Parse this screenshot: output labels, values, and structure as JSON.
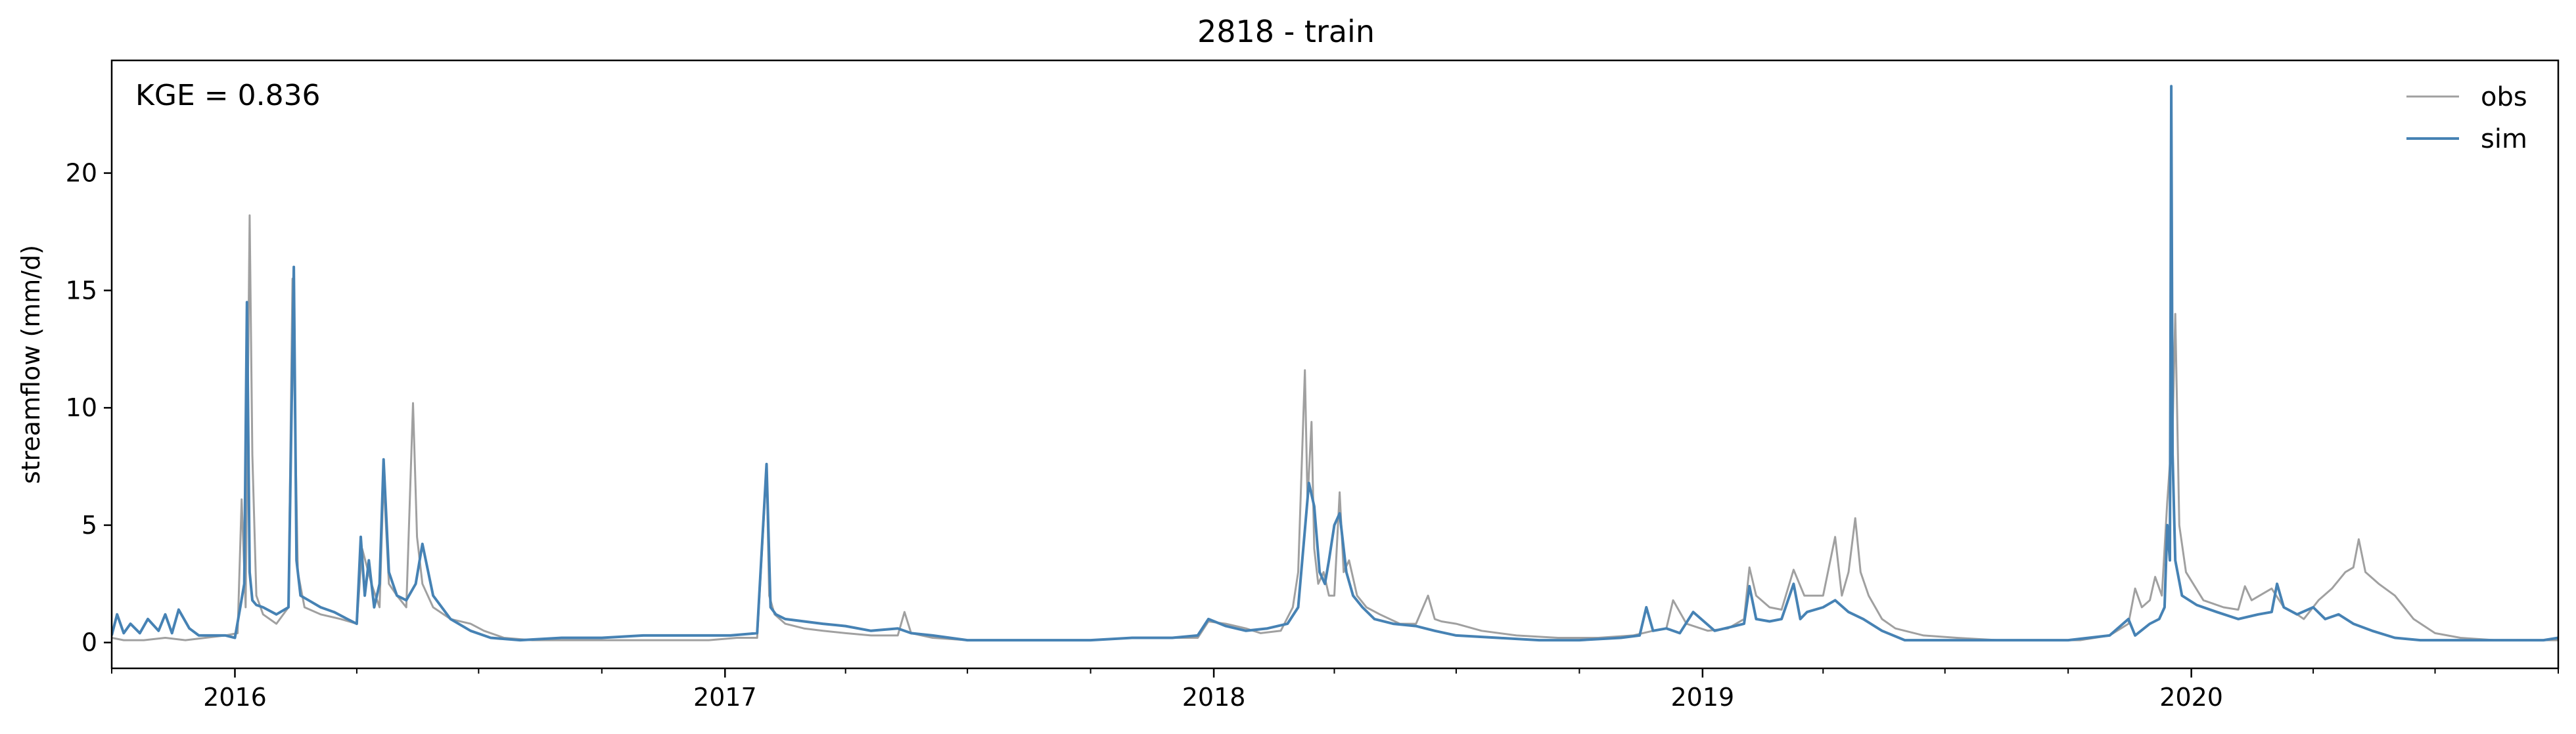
{
  "chart_data": {
    "type": "line",
    "title": "2818 - train",
    "xlabel": "",
    "ylabel": "streamflow (mm/d)",
    "xlim": [
      "2015-10-01",
      "2020-10-01"
    ],
    "ylim": [
      -1.1,
      24.8
    ],
    "yticks": [
      0,
      5,
      10,
      15,
      20
    ],
    "xticks": [
      {
        "date": "2016-01-01",
        "label": "2016"
      },
      {
        "date": "2017-01-01",
        "label": "2017"
      },
      {
        "date": "2018-01-01",
        "label": "2018"
      },
      {
        "date": "2019-01-01",
        "label": "2019"
      },
      {
        "date": "2020-01-01",
        "label": "2020"
      }
    ],
    "grid": false,
    "legend": "top-right",
    "annotation": "KGE = 0.836",
    "series": [
      {
        "name": "obs",
        "color": "#a0a0a0",
        "x": [
          "2015-10-01",
          "2015-10-10",
          "2015-10-25",
          "2015-11-10",
          "2015-11-25",
          "2015-12-10",
          "2015-12-25",
          "2016-01-03",
          "2016-01-06",
          "2016-01-09",
          "2016-01-12",
          "2016-01-14",
          "2016-01-17",
          "2016-01-22",
          "2016-02-01",
          "2016-02-10",
          "2016-02-13",
          "2016-02-17",
          "2016-02-22",
          "2016-03-05",
          "2016-03-20",
          "2016-04-01",
          "2016-04-05",
          "2016-04-12",
          "2016-04-18",
          "2016-04-21",
          "2016-04-25",
          "2016-05-01",
          "2016-05-08",
          "2016-05-13",
          "2016-05-16",
          "2016-05-20",
          "2016-05-28",
          "2016-06-10",
          "2016-06-25",
          "2016-07-05",
          "2016-07-20",
          "2016-08-10",
          "2016-09-15",
          "2016-10-20",
          "2016-11-20",
          "2016-12-20",
          "2017-01-10",
          "2017-01-25",
          "2017-02-01",
          "2017-02-03",
          "2017-02-07",
          "2017-02-15",
          "2017-03-01",
          "2017-03-15",
          "2017-04-01",
          "2017-04-20",
          "2017-05-10",
          "2017-05-15",
          "2017-05-20",
          "2017-06-05",
          "2017-07-01",
          "2017-08-01",
          "2017-09-01",
          "2017-10-01",
          "2017-11-01",
          "2017-12-01",
          "2017-12-20",
          "2017-12-28",
          "2018-01-10",
          "2018-01-25",
          "2018-02-05",
          "2018-02-20",
          "2018-03-01",
          "2018-03-05",
          "2018-03-10",
          "2018-03-12",
          "2018-03-15",
          "2018-03-17",
          "2018-03-20",
          "2018-03-24",
          "2018-03-28",
          "2018-04-01",
          "2018-04-05",
          "2018-04-08",
          "2018-04-12",
          "2018-04-18",
          "2018-04-25",
          "2018-05-05",
          "2018-05-20",
          "2018-06-01",
          "2018-06-10",
          "2018-06-15",
          "2018-06-20",
          "2018-07-01",
          "2018-07-20",
          "2018-08-15",
          "2018-09-15",
          "2018-10-15",
          "2018-11-10",
          "2018-11-25",
          "2018-12-05",
          "2018-12-10",
          "2018-12-20",
          "2019-01-05",
          "2019-01-20",
          "2019-02-01",
          "2019-02-05",
          "2019-02-10",
          "2019-02-20",
          "2019-03-01",
          "2019-03-10",
          "2019-03-18",
          "2019-04-01",
          "2019-04-10",
          "2019-04-15",
          "2019-04-20",
          "2019-04-25",
          "2019-04-29",
          "2019-05-05",
          "2019-05-15",
          "2019-05-25",
          "2019-06-15",
          "2019-07-10",
          "2019-08-10",
          "2019-09-10",
          "2019-10-10",
          "2019-11-01",
          "2019-11-15",
          "2019-11-20",
          "2019-11-25",
          "2019-12-01",
          "2019-12-05",
          "2019-12-10",
          "2019-12-14",
          "2019-12-16",
          "2019-12-18",
          "2019-12-20",
          "2019-12-23",
          "2019-12-28",
          "2020-01-10",
          "2020-01-25",
          "2020-02-05",
          "2020-02-10",
          "2020-02-15",
          "2020-03-01",
          "2020-03-10",
          "2020-03-20",
          "2020-03-25",
          "2020-04-05",
          "2020-04-15",
          "2020-04-25",
          "2020-05-01",
          "2020-05-05",
          "2020-05-10",
          "2020-05-20",
          "2020-06-01",
          "2020-06-15",
          "2020-07-01",
          "2020-07-20",
          "2020-08-15",
          "2020-09-15",
          "2020-10-01"
        ],
        "y": [
          0.2,
          0.1,
          0.1,
          0.2,
          0.1,
          0.2,
          0.3,
          0.4,
          6.1,
          1.5,
          18.2,
          8.0,
          2.0,
          1.2,
          0.8,
          1.5,
          15.5,
          3.0,
          1.5,
          1.2,
          1.0,
          0.8,
          4.0,
          2.5,
          1.5,
          7.0,
          2.5,
          2.0,
          1.5,
          10.2,
          4.5,
          2.5,
          1.5,
          1.0,
          0.8,
          0.5,
          0.2,
          0.1,
          0.1,
          0.1,
          0.1,
          0.1,
          0.2,
          0.2,
          7.4,
          2.0,
          1.2,
          0.8,
          0.6,
          0.5,
          0.4,
          0.3,
          0.3,
          1.3,
          0.4,
          0.2,
          0.1,
          0.1,
          0.1,
          0.1,
          0.2,
          0.2,
          0.2,
          0.9,
          0.8,
          0.6,
          0.4,
          0.5,
          1.5,
          3.0,
          11.6,
          6.0,
          9.4,
          4.0,
          2.5,
          3.0,
          2.0,
          2.0,
          6.4,
          3.0,
          3.5,
          2.0,
          1.5,
          1.2,
          0.8,
          0.8,
          2.0,
          1.0,
          0.9,
          0.8,
          0.5,
          0.3,
          0.2,
          0.2,
          0.3,
          0.5,
          0.6,
          1.8,
          0.8,
          0.5,
          0.6,
          1.0,
          3.2,
          2.0,
          1.5,
          1.4,
          3.1,
          2.0,
          2.0,
          4.5,
          2.0,
          3.0,
          5.3,
          3.0,
          2.0,
          1.0,
          0.6,
          0.3,
          0.2,
          0.1,
          0.1,
          0.1,
          0.3,
          0.8,
          2.3,
          1.5,
          1.8,
          2.8,
          2.0,
          6.0,
          7.6,
          9.0,
          14.0,
          5.0,
          3.0,
          1.8,
          1.5,
          1.4,
          2.4,
          1.8,
          2.3,
          1.5,
          1.2,
          1.0,
          1.8,
          2.3,
          3.0,
          3.2,
          4.4,
          3.0,
          2.5,
          2.0,
          1.0,
          0.4,
          0.2,
          0.1,
          0.1,
          0.1
        ]
      },
      {
        "name": "sim",
        "color": "#4682b4",
        "x": [
          "2015-10-01",
          "2015-10-05",
          "2015-10-10",
          "2015-10-15",
          "2015-10-22",
          "2015-10-28",
          "2015-11-05",
          "2015-11-10",
          "2015-11-15",
          "2015-11-20",
          "2015-11-28",
          "2015-12-05",
          "2015-12-15",
          "2015-12-25",
          "2016-01-01",
          "2016-01-05",
          "2016-01-08",
          "2016-01-10",
          "2016-01-12",
          "2016-01-14",
          "2016-01-17",
          "2016-01-22",
          "2016-02-01",
          "2016-02-10",
          "2016-02-14",
          "2016-02-16",
          "2016-02-19",
          "2016-02-25",
          "2016-03-05",
          "2016-03-15",
          "2016-03-25",
          "2016-04-01",
          "2016-04-04",
          "2016-04-07",
          "2016-04-10",
          "2016-04-14",
          "2016-04-18",
          "2016-04-21",
          "2016-04-25",
          "2016-05-01",
          "2016-05-08",
          "2016-05-15",
          "2016-05-20",
          "2016-05-28",
          "2016-06-10",
          "2016-06-25",
          "2016-07-10",
          "2016-08-01",
          "2016-09-01",
          "2016-10-01",
          "2016-11-01",
          "2016-12-01",
          "2017-01-05",
          "2017-01-25",
          "2017-02-01",
          "2017-02-04",
          "2017-02-08",
          "2017-02-15",
          "2017-03-01",
          "2017-03-15",
          "2017-04-01",
          "2017-04-20",
          "2017-05-10",
          "2017-05-20",
          "2017-06-05",
          "2017-07-01",
          "2017-08-01",
          "2017-09-01",
          "2017-10-01",
          "2017-11-01",
          "2017-12-01",
          "2017-12-20",
          "2017-12-28",
          "2018-01-10",
          "2018-01-25",
          "2018-02-10",
          "2018-02-25",
          "2018-03-05",
          "2018-03-10",
          "2018-03-13",
          "2018-03-17",
          "2018-03-21",
          "2018-03-25",
          "2018-03-28",
          "2018-04-01",
          "2018-04-05",
          "2018-04-10",
          "2018-04-15",
          "2018-04-22",
          "2018-05-01",
          "2018-05-15",
          "2018-06-01",
          "2018-06-15",
          "2018-07-01",
          "2018-08-01",
          "2018-09-01",
          "2018-10-01",
          "2018-11-01",
          "2018-11-15",
          "2018-11-20",
          "2018-11-25",
          "2018-12-05",
          "2018-12-15",
          "2018-12-25",
          "2019-01-10",
          "2019-01-25",
          "2019-02-01",
          "2019-02-05",
          "2019-02-10",
          "2019-02-20",
          "2019-03-01",
          "2019-03-10",
          "2019-03-15",
          "2019-03-20",
          "2019-04-01",
          "2019-04-10",
          "2019-04-20",
          "2019-05-01",
          "2019-05-15",
          "2019-06-01",
          "2019-06-15",
          "2019-07-01",
          "2019-08-01",
          "2019-09-01",
          "2019-10-01",
          "2019-11-01",
          "2019-11-15",
          "2019-11-20",
          "2019-12-01",
          "2019-12-08",
          "2019-12-12",
          "2019-12-14",
          "2019-12-16",
          "2019-12-17",
          "2019-12-18",
          "2019-12-20",
          "2019-12-25",
          "2020-01-05",
          "2020-01-20",
          "2020-02-05",
          "2020-02-20",
          "2020-03-01",
          "2020-03-05",
          "2020-03-10",
          "2020-03-20",
          "2020-04-01",
          "2020-04-10",
          "2020-04-20",
          "2020-05-01",
          "2020-05-15",
          "2020-06-01",
          "2020-06-20",
          "2020-07-10",
          "2020-08-01",
          "2020-09-01",
          "2020-09-20",
          "2020-10-01"
        ],
        "y": [
          0.3,
          1.2,
          0.4,
          0.8,
          0.4,
          1.0,
          0.5,
          1.2,
          0.4,
          1.4,
          0.6,
          0.3,
          0.3,
          0.3,
          0.2,
          1.5,
          2.5,
          14.5,
          3.0,
          1.8,
          1.6,
          1.5,
          1.2,
          1.5,
          16.0,
          3.5,
          2.0,
          1.8,
          1.5,
          1.3,
          1.0,
          0.8,
          4.5,
          2.0,
          3.5,
          1.5,
          2.5,
          7.8,
          3.0,
          2.0,
          1.8,
          2.5,
          4.2,
          2.0,
          1.0,
          0.5,
          0.2,
          0.1,
          0.2,
          0.2,
          0.3,
          0.3,
          0.3,
          0.4,
          7.6,
          1.5,
          1.2,
          1.0,
          0.9,
          0.8,
          0.7,
          0.5,
          0.6,
          0.4,
          0.3,
          0.1,
          0.1,
          0.1,
          0.1,
          0.2,
          0.2,
          0.3,
          1.0,
          0.7,
          0.5,
          0.6,
          0.8,
          1.5,
          4.8,
          6.8,
          5.8,
          3.0,
          2.5,
          3.5,
          5.0,
          5.5,
          3.0,
          2.0,
          1.5,
          1.0,
          0.8,
          0.7,
          0.5,
          0.3,
          0.2,
          0.1,
          0.1,
          0.2,
          0.3,
          1.5,
          0.5,
          0.6,
          0.4,
          1.3,
          0.5,
          0.7,
          0.8,
          2.4,
          1.0,
          0.9,
          1.0,
          2.5,
          1.0,
          1.3,
          1.5,
          1.8,
          1.3,
          1.0,
          0.5,
          0.1,
          0.1,
          0.1,
          0.1,
          0.1,
          0.1,
          0.3,
          1.0,
          0.3,
          0.8,
          1.0,
          1.5,
          5.0,
          3.5,
          23.7,
          8.0,
          3.5,
          2.0,
          1.6,
          1.3,
          1.0,
          1.2,
          1.3,
          2.5,
          1.5,
          1.2,
          1.5,
          1.0,
          1.2,
          0.8,
          0.5,
          0.2,
          0.1,
          0.1,
          0.1,
          0.1,
          0.1,
          0.2
        ]
      }
    ]
  }
}
